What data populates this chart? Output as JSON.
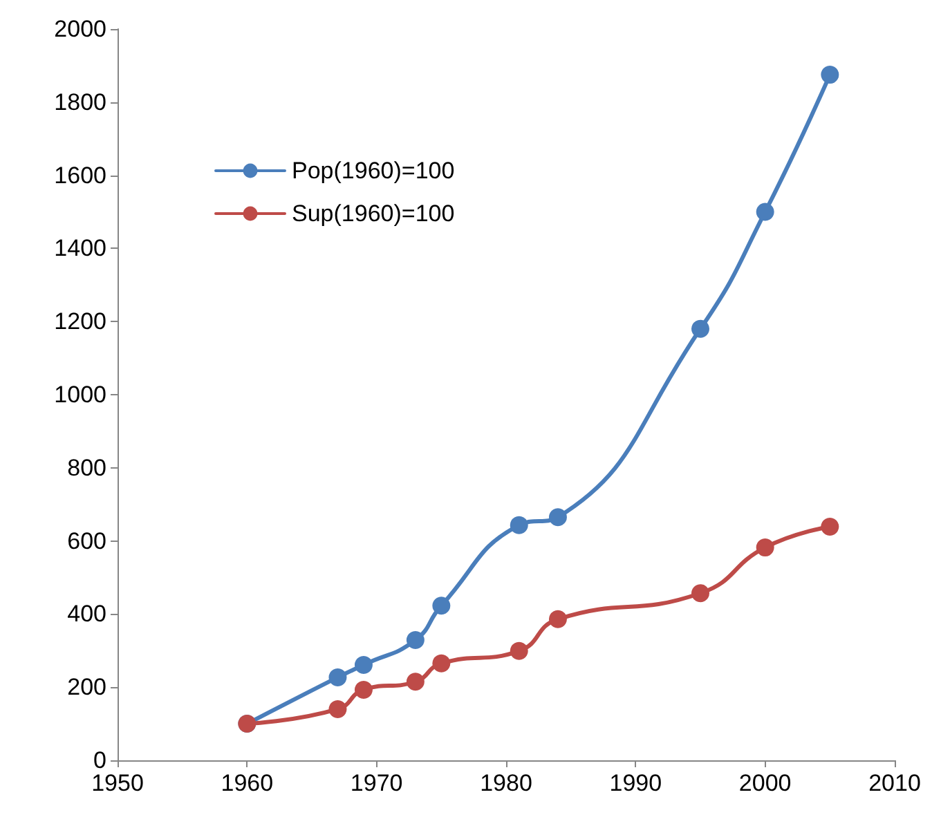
{
  "chart_data": {
    "type": "line",
    "x": [
      1960,
      1967,
      1969,
      1973,
      1975,
      1981,
      1984,
      1995,
      2000,
      2005
    ],
    "series": [
      {
        "name": "Pop(1960)=100",
        "color": "#4a7ebb",
        "values": [
          100,
          227,
          261,
          329,
          423,
          643,
          665,
          1180,
          1500,
          1875
        ]
      },
      {
        "name": "Sup(1960)=100",
        "color": "#be4b48",
        "values": [
          100,
          140,
          193,
          215,
          265,
          299,
          386,
          457,
          582,
          639
        ]
      }
    ],
    "xlim": [
      1950,
      2010
    ],
    "xticks": [
      1950,
      1960,
      1970,
      1980,
      1990,
      2000,
      2010
    ],
    "ylim": [
      0,
      2000
    ],
    "yticks": [
      0,
      200,
      400,
      600,
      800,
      1000,
      1200,
      1400,
      1600,
      1800,
      2000
    ],
    "grid": false,
    "legend": "top left",
    "marker": "circle",
    "line_style": "solid"
  }
}
